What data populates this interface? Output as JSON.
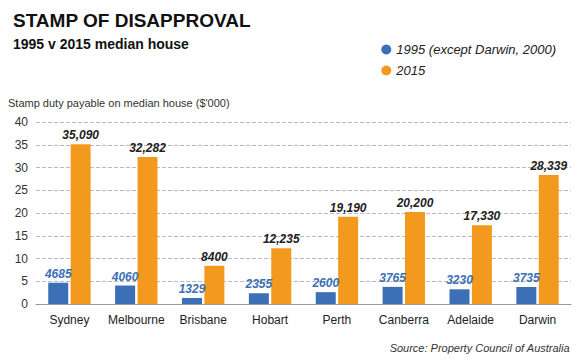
{
  "chart_data": {
    "type": "bar",
    "title": "STAMP OF DISAPPROVAL",
    "subtitle": "1995 v 2015 median house",
    "y_label": "Stamp duty payable on median house ($'000)",
    "source": "Source: Property Council of Australia",
    "categories": [
      "Sydney",
      "Melbourne",
      "Brisbane",
      "Hobart",
      "Perth",
      "Canberra",
      "Adelaide",
      "Darwin"
    ],
    "series": [
      {
        "name": "1995 (except Darwin, 2000)",
        "color": "#3b6fb6",
        "values": [
          4.685,
          4.06,
          1.329,
          2.355,
          2.6,
          3.765,
          3.23,
          3.735
        ],
        "value_labels": [
          "4685",
          "4060",
          "1329",
          "2355",
          "2600",
          "3765",
          "3230",
          "3735"
        ]
      },
      {
        "name": "2015",
        "color": "#f39a1e",
        "values": [
          35.09,
          32.282,
          8.4,
          12.235,
          19.19,
          20.2,
          17.33,
          28.339
        ],
        "value_labels": [
          "35,090",
          "32,282",
          "8400",
          "12,235",
          "19,190",
          "20,200",
          "17,330",
          "28,339"
        ]
      }
    ],
    "ylim": [
      0,
      40
    ],
    "yticks": [
      0,
      5,
      10,
      15,
      20,
      25,
      30,
      35,
      40
    ],
    "grid": true,
    "legend": "top-right",
    "data_labels": true
  }
}
